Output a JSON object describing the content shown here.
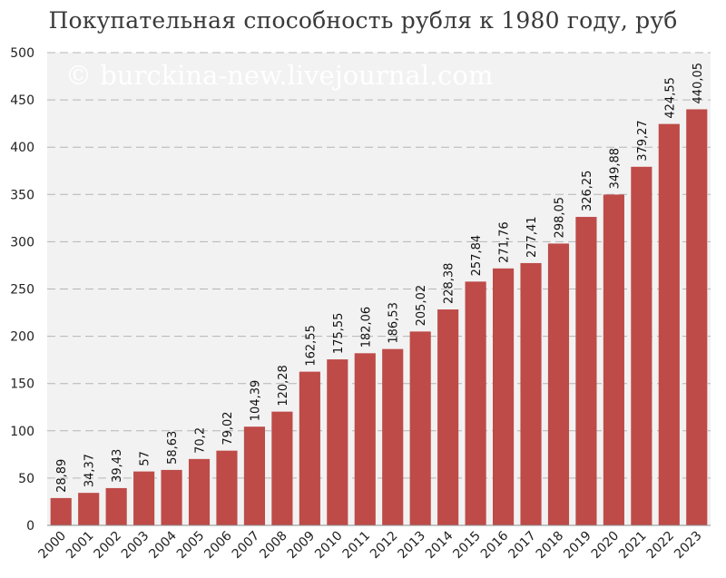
{
  "chart_data": {
    "type": "bar",
    "title": "Покупательная способность рубля к 1980 году, руб",
    "watermark": "© burckina-new.livejournal.com",
    "categories": [
      "2000",
      "2001",
      "2002",
      "2003",
      "2004",
      "2005",
      "2006",
      "2007",
      "2008",
      "2009",
      "2010",
      "2011",
      "2012",
      "2013",
      "2014",
      "2015",
      "2016",
      "2017",
      "2018",
      "2019",
      "2020",
      "2021",
      "2022",
      "2023"
    ],
    "values": [
      28.89,
      34.37,
      39.43,
      57,
      58.63,
      70.2,
      79.02,
      104.39,
      120.28,
      162.55,
      175.55,
      182.06,
      186.53,
      205.02,
      228.38,
      257.84,
      271.76,
      277.41,
      298.05,
      326.25,
      349.88,
      379.27,
      424.55,
      440.05
    ],
    "value_labels": [
      "28,89",
      "34,37",
      "39,43",
      "57",
      "58,63",
      "70,2",
      "79,02",
      "104,39",
      "120,28",
      "162,55",
      "175,55",
      "182,06",
      "186,53",
      "205,02",
      "228,38",
      "257,84",
      "271,76",
      "277,41",
      "298,05",
      "326,25",
      "349,88",
      "379,27",
      "424,55",
      "440,05"
    ],
    "ylim": [
      0,
      500
    ],
    "yticks": [
      0,
      50,
      100,
      150,
      200,
      250,
      300,
      350,
      400,
      450,
      500
    ],
    "xlabel": "",
    "ylabel": "",
    "grid": true,
    "bar_color": "#be4b48",
    "plot_background": "#f2f2f2"
  }
}
